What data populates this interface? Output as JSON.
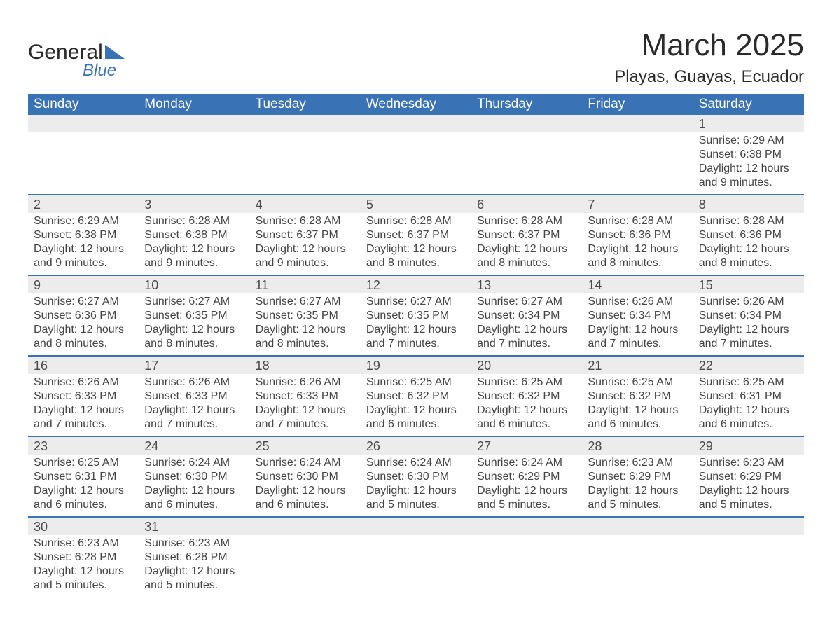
{
  "logo": {
    "word1": "General",
    "word2": "Blue",
    "brand_color": "#3a73b5"
  },
  "title": {
    "month": "March 2025",
    "location": "Playas, Guayas, Ecuador"
  },
  "colors": {
    "header_bg": "#3a73b5",
    "header_text": "#ffffff",
    "daynum_bg": "#ececec",
    "row_border": "#3a73b5",
    "body_text": "#3a3a3a"
  },
  "days_of_week": [
    "Sunday",
    "Monday",
    "Tuesday",
    "Wednesday",
    "Thursday",
    "Friday",
    "Saturday"
  ],
  "weeks": [
    [
      null,
      null,
      null,
      null,
      null,
      null,
      {
        "n": "1",
        "sr": "Sunrise: 6:29 AM",
        "ss": "Sunset: 6:38 PM",
        "d1": "Daylight: 12 hours",
        "d2": "and 9 minutes."
      }
    ],
    [
      {
        "n": "2",
        "sr": "Sunrise: 6:29 AM",
        "ss": "Sunset: 6:38 PM",
        "d1": "Daylight: 12 hours",
        "d2": "and 9 minutes."
      },
      {
        "n": "3",
        "sr": "Sunrise: 6:28 AM",
        "ss": "Sunset: 6:38 PM",
        "d1": "Daylight: 12 hours",
        "d2": "and 9 minutes."
      },
      {
        "n": "4",
        "sr": "Sunrise: 6:28 AM",
        "ss": "Sunset: 6:37 PM",
        "d1": "Daylight: 12 hours",
        "d2": "and 9 minutes."
      },
      {
        "n": "5",
        "sr": "Sunrise: 6:28 AM",
        "ss": "Sunset: 6:37 PM",
        "d1": "Daylight: 12 hours",
        "d2": "and 8 minutes."
      },
      {
        "n": "6",
        "sr": "Sunrise: 6:28 AM",
        "ss": "Sunset: 6:37 PM",
        "d1": "Daylight: 12 hours",
        "d2": "and 8 minutes."
      },
      {
        "n": "7",
        "sr": "Sunrise: 6:28 AM",
        "ss": "Sunset: 6:36 PM",
        "d1": "Daylight: 12 hours",
        "d2": "and 8 minutes."
      },
      {
        "n": "8",
        "sr": "Sunrise: 6:28 AM",
        "ss": "Sunset: 6:36 PM",
        "d1": "Daylight: 12 hours",
        "d2": "and 8 minutes."
      }
    ],
    [
      {
        "n": "9",
        "sr": "Sunrise: 6:27 AM",
        "ss": "Sunset: 6:36 PM",
        "d1": "Daylight: 12 hours",
        "d2": "and 8 minutes."
      },
      {
        "n": "10",
        "sr": "Sunrise: 6:27 AM",
        "ss": "Sunset: 6:35 PM",
        "d1": "Daylight: 12 hours",
        "d2": "and 8 minutes."
      },
      {
        "n": "11",
        "sr": "Sunrise: 6:27 AM",
        "ss": "Sunset: 6:35 PM",
        "d1": "Daylight: 12 hours",
        "d2": "and 8 minutes."
      },
      {
        "n": "12",
        "sr": "Sunrise: 6:27 AM",
        "ss": "Sunset: 6:35 PM",
        "d1": "Daylight: 12 hours",
        "d2": "and 7 minutes."
      },
      {
        "n": "13",
        "sr": "Sunrise: 6:27 AM",
        "ss": "Sunset: 6:34 PM",
        "d1": "Daylight: 12 hours",
        "d2": "and 7 minutes."
      },
      {
        "n": "14",
        "sr": "Sunrise: 6:26 AM",
        "ss": "Sunset: 6:34 PM",
        "d1": "Daylight: 12 hours",
        "d2": "and 7 minutes."
      },
      {
        "n": "15",
        "sr": "Sunrise: 6:26 AM",
        "ss": "Sunset: 6:34 PM",
        "d1": "Daylight: 12 hours",
        "d2": "and 7 minutes."
      }
    ],
    [
      {
        "n": "16",
        "sr": "Sunrise: 6:26 AM",
        "ss": "Sunset: 6:33 PM",
        "d1": "Daylight: 12 hours",
        "d2": "and 7 minutes."
      },
      {
        "n": "17",
        "sr": "Sunrise: 6:26 AM",
        "ss": "Sunset: 6:33 PM",
        "d1": "Daylight: 12 hours",
        "d2": "and 7 minutes."
      },
      {
        "n": "18",
        "sr": "Sunrise: 6:26 AM",
        "ss": "Sunset: 6:33 PM",
        "d1": "Daylight: 12 hours",
        "d2": "and 7 minutes."
      },
      {
        "n": "19",
        "sr": "Sunrise: 6:25 AM",
        "ss": "Sunset: 6:32 PM",
        "d1": "Daylight: 12 hours",
        "d2": "and 6 minutes."
      },
      {
        "n": "20",
        "sr": "Sunrise: 6:25 AM",
        "ss": "Sunset: 6:32 PM",
        "d1": "Daylight: 12 hours",
        "d2": "and 6 minutes."
      },
      {
        "n": "21",
        "sr": "Sunrise: 6:25 AM",
        "ss": "Sunset: 6:32 PM",
        "d1": "Daylight: 12 hours",
        "d2": "and 6 minutes."
      },
      {
        "n": "22",
        "sr": "Sunrise: 6:25 AM",
        "ss": "Sunset: 6:31 PM",
        "d1": "Daylight: 12 hours",
        "d2": "and 6 minutes."
      }
    ],
    [
      {
        "n": "23",
        "sr": "Sunrise: 6:25 AM",
        "ss": "Sunset: 6:31 PM",
        "d1": "Daylight: 12 hours",
        "d2": "and 6 minutes."
      },
      {
        "n": "24",
        "sr": "Sunrise: 6:24 AM",
        "ss": "Sunset: 6:30 PM",
        "d1": "Daylight: 12 hours",
        "d2": "and 6 minutes."
      },
      {
        "n": "25",
        "sr": "Sunrise: 6:24 AM",
        "ss": "Sunset: 6:30 PM",
        "d1": "Daylight: 12 hours",
        "d2": "and 6 minutes."
      },
      {
        "n": "26",
        "sr": "Sunrise: 6:24 AM",
        "ss": "Sunset: 6:30 PM",
        "d1": "Daylight: 12 hours",
        "d2": "and 5 minutes."
      },
      {
        "n": "27",
        "sr": "Sunrise: 6:24 AM",
        "ss": "Sunset: 6:29 PM",
        "d1": "Daylight: 12 hours",
        "d2": "and 5 minutes."
      },
      {
        "n": "28",
        "sr": "Sunrise: 6:23 AM",
        "ss": "Sunset: 6:29 PM",
        "d1": "Daylight: 12 hours",
        "d2": "and 5 minutes."
      },
      {
        "n": "29",
        "sr": "Sunrise: 6:23 AM",
        "ss": "Sunset: 6:29 PM",
        "d1": "Daylight: 12 hours",
        "d2": "and 5 minutes."
      }
    ],
    [
      {
        "n": "30",
        "sr": "Sunrise: 6:23 AM",
        "ss": "Sunset: 6:28 PM",
        "d1": "Daylight: 12 hours",
        "d2": "and 5 minutes."
      },
      {
        "n": "31",
        "sr": "Sunrise: 6:23 AM",
        "ss": "Sunset: 6:28 PM",
        "d1": "Daylight: 12 hours",
        "d2": "and 5 minutes."
      },
      null,
      null,
      null,
      null,
      null
    ]
  ]
}
